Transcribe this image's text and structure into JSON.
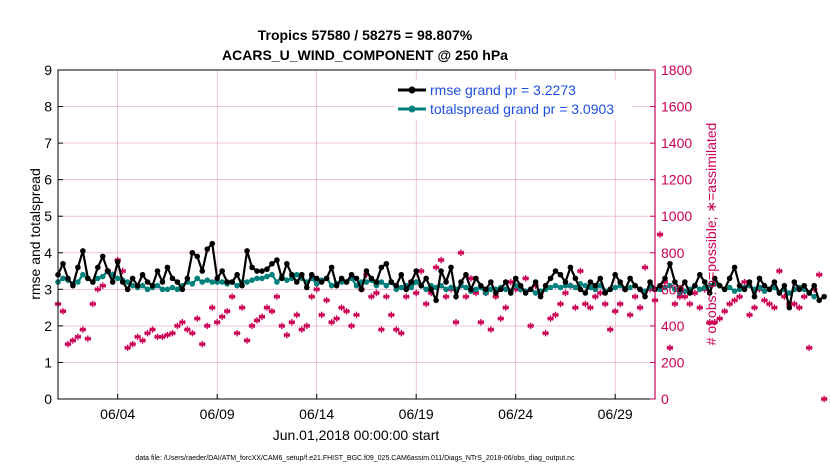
{
  "colors": {
    "rmse": "#000000",
    "spread": "#00807a",
    "obs": "#cc0055",
    "legend_text": "#1f4fe0",
    "grid": "#e3a0c0"
  },
  "chart_data": {
    "type": "line",
    "title_line1": "Tropics 57580 / 58275 = 98.807%",
    "title_line2": "ACARS_U_WIND_COMPONENT @ 250 hPa",
    "ylabel_left": "rmse and totalspread",
    "ylabel_right": "# of obs: o=possible; ∗=assimilated",
    "xlabel": "Jun.01,2018 00:00:00 start",
    "footer": "data file: /Users/raeder/DAI/ATM_forcXX/CAM6_setup/f.e21.FHIST_BGC.f09_025.CAM6assim.011/Diags_NTrS_2018-06/obs_diag_output.nc",
    "x_range_days": [
      1.0,
      31.0
    ],
    "ylim_left": [
      0,
      9
    ],
    "ylim_right": [
      0,
      1800
    ],
    "yticks_left": [
      "0",
      "1",
      "2",
      "3",
      "4",
      "5",
      "6",
      "7",
      "8",
      "9"
    ],
    "yticks_right": [
      "0",
      "200",
      "400",
      "600",
      "800",
      "1000",
      "1200",
      "1400",
      "1600",
      "1800"
    ],
    "xticks": [
      {
        "day": 4.0,
        "label": "06/04"
      },
      {
        "day": 9.0,
        "label": "06/09"
      },
      {
        "day": 14.0,
        "label": "06/14"
      },
      {
        "day": 19.0,
        "label": "06/19"
      },
      {
        "day": 24.0,
        "label": "06/24"
      },
      {
        "day": 29.0,
        "label": "06/29"
      }
    ],
    "legend": {
      "position": "top-right",
      "rmse_label": "rmse grand pr = 3.2273",
      "spread_label": "totalspread grand pr = 3.0903"
    },
    "x_start_day": 1.0,
    "x_step_days": 0.25,
    "series": [
      {
        "name": "rmse",
        "values": [
          3.4,
          3.7,
          3.3,
          3.1,
          3.6,
          4.05,
          3.3,
          3.2,
          3.6,
          3.9,
          3.5,
          3.2,
          3.75,
          3.2,
          3.0,
          3.3,
          3.1,
          3.4,
          3.2,
          3.1,
          3.5,
          3.2,
          3.6,
          3.3,
          3.2,
          3.0,
          3.3,
          4.0,
          3.9,
          3.5,
          4.1,
          4.25,
          3.3,
          3.5,
          3.2,
          3.2,
          3.4,
          3.1,
          4.05,
          3.6,
          3.5,
          3.5,
          3.55,
          3.7,
          3.8,
          3.3,
          3.7,
          3.4,
          3.2,
          3.4,
          3.05,
          3.4,
          3.3,
          3.2,
          3.3,
          3.6,
          3.1,
          3.3,
          3.2,
          3.4,
          3.3,
          3.0,
          3.5,
          3.3,
          3.2,
          3.6,
          3.7,
          3.2,
          3.1,
          3.4,
          3.0,
          3.2,
          3.5,
          3.1,
          3.3,
          3.0,
          2.7,
          3.5,
          3.2,
          3.6,
          2.8,
          3.2,
          3.4,
          3.0,
          3.3,
          3.1,
          3.0,
          3.2,
          2.9,
          3.0,
          3.2,
          2.9,
          3.3,
          3.1,
          2.9,
          3.0,
          3.2,
          2.8,
          3.1,
          3.3,
          3.5,
          3.4,
          3.2,
          3.6,
          3.3,
          3.0,
          2.9,
          3.2,
          3.1,
          3.3,
          2.9,
          3.0,
          3.4,
          3.2,
          3.0,
          3.3,
          3.1,
          3.0,
          2.8,
          3.2,
          3.0,
          3.1,
          3.3,
          3.7,
          3.2,
          3.0,
          3.2,
          2.9,
          3.1,
          3.4,
          3.2,
          2.9,
          3.3,
          3.1,
          3.0,
          3.3,
          3.6,
          3.1,
          3.0,
          3.2,
          2.8,
          3.3,
          3.1,
          3.0,
          3.2,
          2.9,
          3.1,
          2.5,
          3.2,
          3.0,
          3.1,
          2.9,
          3.1,
          2.7,
          2.8
        ]
      },
      {
        "name": "totalspread",
        "values": [
          3.2,
          3.3,
          3.25,
          3.15,
          3.2,
          3.4,
          3.3,
          3.2,
          3.3,
          3.35,
          3.5,
          3.4,
          3.3,
          3.25,
          3.2,
          3.1,
          3.05,
          3.1,
          3.0,
          3.05,
          3.1,
          3.0,
          3.0,
          3.05,
          3.0,
          3.1,
          3.2,
          3.15,
          3.3,
          3.2,
          3.25,
          3.2,
          3.2,
          3.2,
          3.15,
          3.2,
          3.1,
          3.2,
          3.2,
          3.25,
          3.3,
          3.3,
          3.35,
          3.4,
          3.2,
          3.35,
          3.25,
          3.3,
          3.4,
          3.3,
          3.2,
          3.3,
          3.15,
          3.25,
          3.3,
          3.1,
          3.15,
          3.2,
          3.2,
          3.3,
          3.1,
          3.2,
          3.2,
          3.25,
          3.1,
          3.2,
          3.1,
          3.2,
          3.0,
          3.05,
          3.1,
          3.05,
          3.2,
          3.1,
          3.0,
          3.1,
          3.05,
          3.1,
          3.0,
          3.05,
          3.0,
          3.1,
          3.05,
          2.95,
          3.0,
          3.05,
          2.9,
          3.0,
          3.0,
          3.05,
          3.0,
          2.95,
          3.1,
          3.0,
          2.95,
          3.0,
          2.9,
          2.95,
          3.0,
          3.05,
          3.1,
          3.05,
          3.1,
          3.1,
          3.05,
          3.15,
          3.1,
          3.05,
          3.0,
          3.1,
          2.95,
          3.0,
          3.05,
          3.1,
          3.0,
          3.05,
          3.1,
          3.0,
          2.95,
          3.05,
          3.0,
          3.0,
          3.05,
          3.1,
          3.0,
          2.9,
          2.95,
          3.0,
          3.1,
          3.0,
          3.05,
          3.1,
          3.15,
          3.1,
          3.0,
          3.05,
          2.95,
          3.0,
          3.05,
          3.1,
          3.0,
          3.05,
          2.95,
          3.0,
          3.05,
          2.9,
          3.0,
          2.9,
          3.0,
          3.05,
          3.0,
          2.9,
          2.8
        ]
      },
      {
        "name": "obs_assimilated",
        "values": [
          520,
          480,
          300,
          320,
          340,
          380,
          330,
          520,
          600,
          620,
          700,
          680,
          760,
          700,
          280,
          300,
          340,
          320,
          360,
          380,
          340,
          340,
          350,
          360,
          400,
          420,
          380,
          360,
          440,
          300,
          400,
          500,
          420,
          450,
          480,
          560,
          360,
          500,
          320,
          400,
          430,
          450,
          500,
          480,
          560,
          400,
          350,
          420,
          460,
          380,
          400,
          560,
          600,
          460,
          540,
          420,
          440,
          500,
          480,
          400,
          460,
          600,
          680,
          560,
          580,
          380,
          560,
          460,
          380,
          360,
          560,
          640,
          580,
          700,
          520,
          580,
          720,
          760,
          560,
          600,
          420,
          800,
          560,
          660,
          580,
          420,
          580,
          380,
          560,
          440,
          500,
          640,
          600,
          600,
          660,
          400,
          620,
          580,
          360,
          440,
          460,
          520,
          580,
          620,
          500,
          700,
          520,
          500,
          560,
          580,
          520,
          380,
          480,
          520,
          600,
          460,
          560,
          500,
          720,
          600,
          540,
          900,
          640,
          280,
          520,
          560,
          560,
          520,
          580,
          500,
          600,
          420,
          420,
          440,
          480,
          520,
          540,
          560,
          640,
          460,
          500,
          600,
          540,
          520,
          500,
          700,
          560,
          520,
          520,
          500,
          560,
          280,
          600,
          680,
          0
        ]
      },
      {
        "name": "obs_possible",
        "values": [
          540,
          480,
          310,
          330,
          350,
          390,
          340,
          530,
          610,
          630,
          710,
          690,
          770,
          710,
          290,
          310,
          350,
          330,
          370,
          390,
          350,
          350,
          360,
          370,
          410,
          430,
          390,
          370,
          450,
          310,
          410,
          510,
          430,
          460,
          490,
          570,
          370,
          510,
          330,
          410,
          440,
          460,
          510,
          490,
          570,
          410,
          360,
          430,
          470,
          390,
          410,
          570,
          610,
          470,
          550,
          430,
          450,
          510,
          490,
          410,
          470,
          610,
          690,
          570,
          590,
          390,
          570,
          470,
          390,
          370,
          570,
          650,
          590,
          710,
          530,
          590,
          730,
          770,
          580,
          620,
          430,
          810,
          570,
          670,
          590,
          430,
          590,
          390,
          570,
          450,
          510,
          650,
          610,
          610,
          670,
          410,
          630,
          590,
          370,
          450,
          470,
          530,
          590,
          630,
          510,
          710,
          530,
          510,
          570,
          590,
          530,
          390,
          490,
          530,
          610,
          470,
          570,
          510,
          730,
          610,
          550,
          910,
          650,
          290,
          530,
          570,
          570,
          530,
          590,
          510,
          610,
          430,
          430,
          450,
          490,
          530,
          550,
          570,
          650,
          470,
          510,
          610,
          550,
          530,
          510,
          710,
          570,
          530,
          530,
          510,
          570,
          290,
          610,
          690,
          0
        ]
      }
    ]
  }
}
